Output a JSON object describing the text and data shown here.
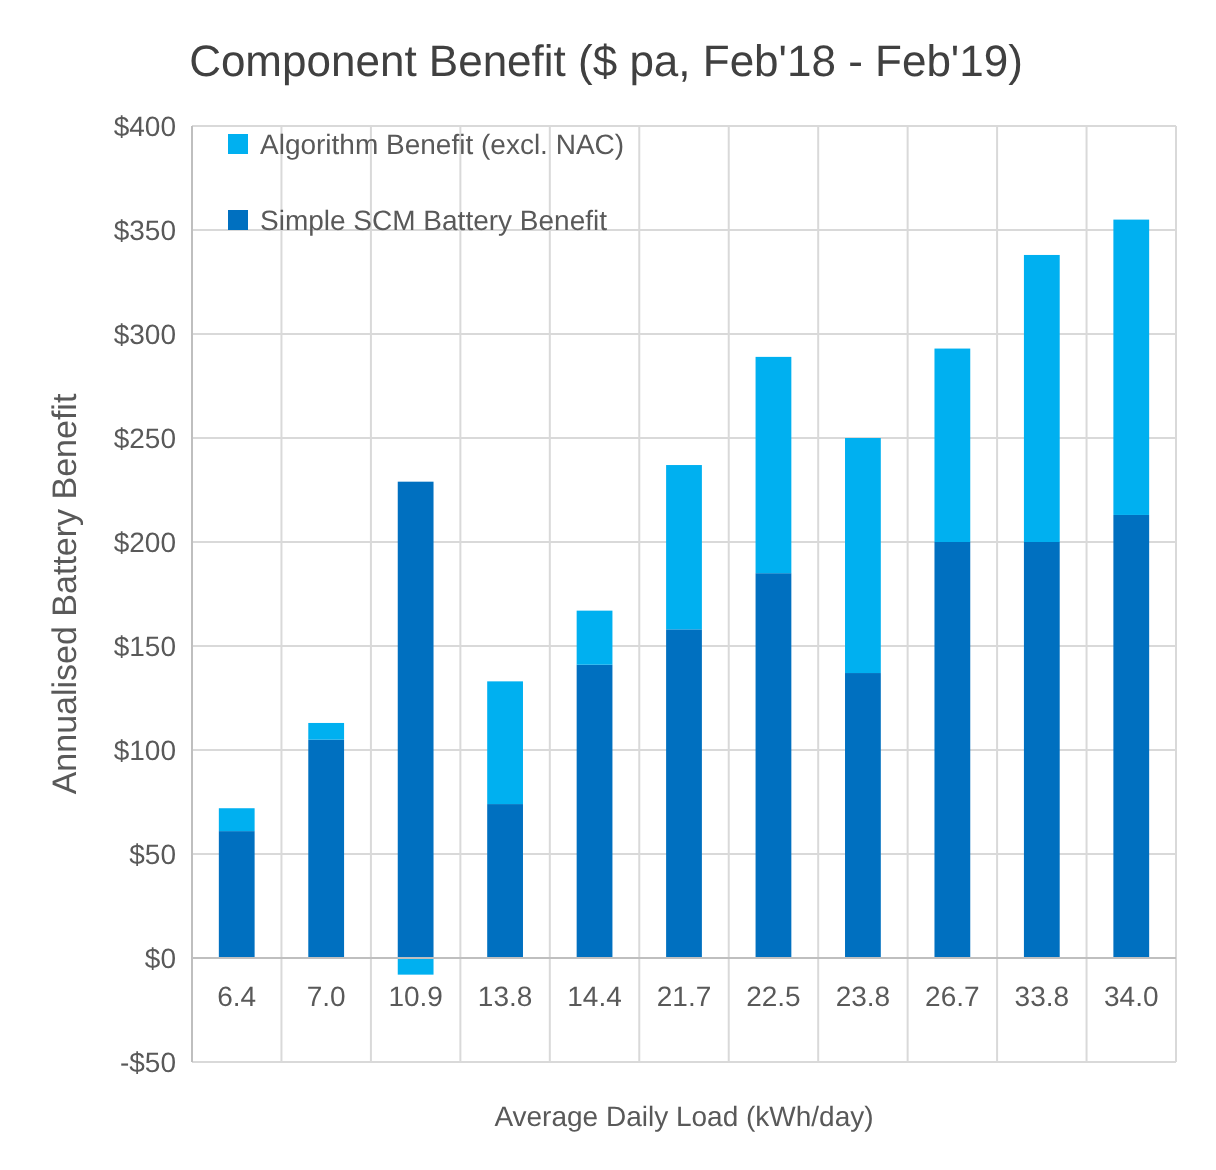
{
  "chart_data": {
    "type": "bar",
    "title": "Component Benefit ($ pa, Feb'18 - Feb'19)",
    "xlabel": "Average Daily Load (kWh/day)",
    "ylabel": "Annualised Battery Benefit",
    "categories": [
      "6.4",
      "7.0",
      "10.9",
      "13.8",
      "14.4",
      "21.7",
      "22.5",
      "23.8",
      "26.7",
      "33.8",
      "34.0"
    ],
    "stacked": true,
    "series": [
      {
        "name": "Simple SCM Battery Benefit",
        "color": "#0070c0",
        "values": [
          61,
          105,
          229,
          74,
          141,
          158,
          185,
          137,
          200,
          200,
          213
        ]
      },
      {
        "name": "Algorithm Benefit (excl. NAC)",
        "color": "#00b0f0",
        "values": [
          11,
          8,
          -8,
          59,
          26,
          79,
          104,
          113,
          93,
          138,
          142
        ]
      }
    ],
    "ylim": [
      -50,
      400
    ],
    "yticks": [
      {
        "value": -50,
        "label": "-$50"
      },
      {
        "value": 0,
        "label": "$0"
      },
      {
        "value": 50,
        "label": "$50"
      },
      {
        "value": 100,
        "label": "$100"
      },
      {
        "value": 150,
        "label": "$150"
      },
      {
        "value": 200,
        "label": "$200"
      },
      {
        "value": 250,
        "label": "$250"
      },
      {
        "value": 300,
        "label": "$300"
      },
      {
        "value": 350,
        "label": "$350"
      },
      {
        "value": 400,
        "label": "$400"
      }
    ],
    "grid": true,
    "legend": "top left"
  }
}
